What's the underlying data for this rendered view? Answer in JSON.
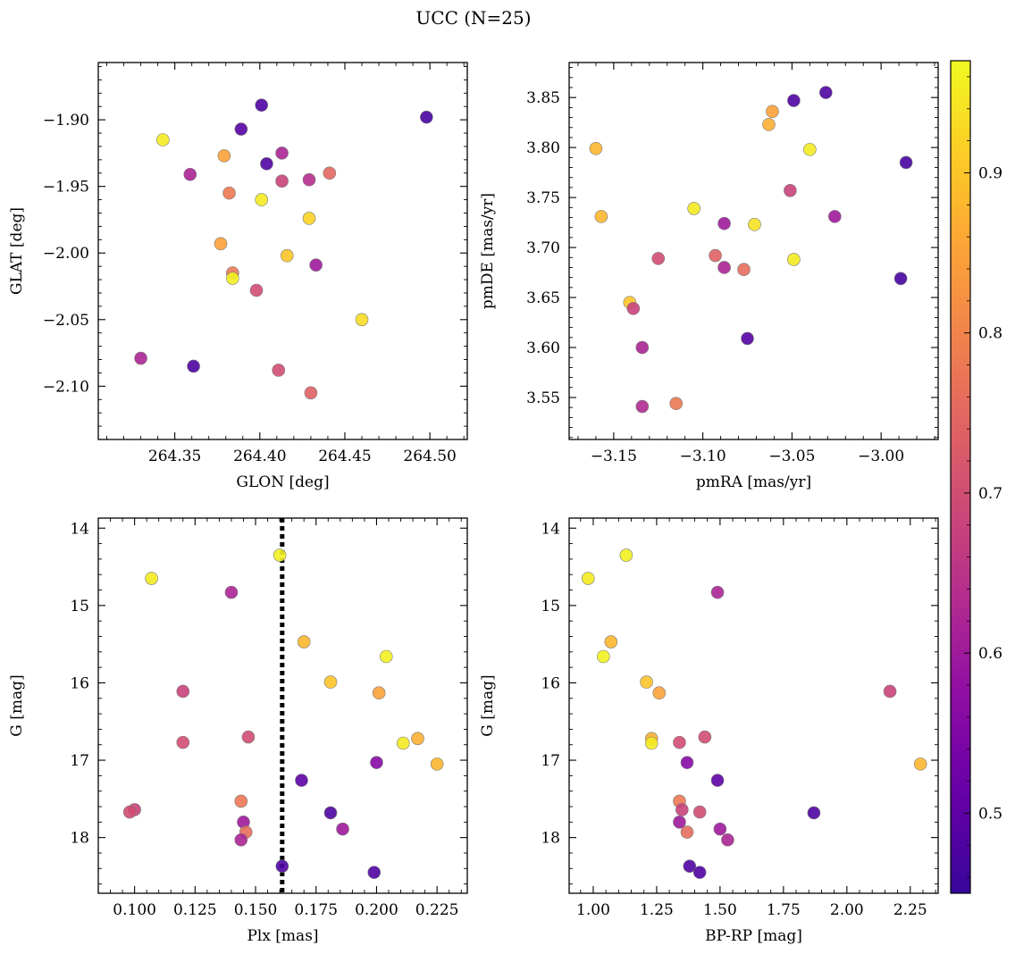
{
  "figure": {
    "title": "UCC (N=25)",
    "colorbar": {
      "colormap": "plasma",
      "range": [
        0.45,
        0.97
      ],
      "ticks": [
        0.5,
        0.6,
        0.7,
        0.8,
        0.9
      ],
      "tick_labels": [
        "0.5",
        "0.6",
        "0.7",
        "0.8",
        "0.9"
      ]
    }
  },
  "chart_data": [
    {
      "type": "scatter",
      "title": "",
      "xlabel": "GLON [deg]",
      "ylabel": "GLAT [deg]",
      "xlim": [
        264.305,
        264.522
      ],
      "ylim": [
        -2.14,
        -1.857
      ],
      "y_inverted": false,
      "xticks": [
        264.35,
        264.4,
        264.45,
        264.5
      ],
      "xtick_labels": [
        "264.35",
        "264.40",
        "264.45",
        "264.50"
      ],
      "yticks": [
        -2.1,
        -2.05,
        -2.0,
        -1.95,
        -1.9
      ],
      "ytick_labels": [
        "−2.10",
        "−2.05",
        "−2.00",
        "−1.95",
        "−1.90"
      ],
      "points": [
        {
          "x": 264.401,
          "y": -1.889,
          "c": 0.48
        },
        {
          "x": 264.498,
          "y": -1.898,
          "c": 0.47
        },
        {
          "x": 264.389,
          "y": -1.907,
          "c": 0.49
        },
        {
          "x": 264.343,
          "y": -1.915,
          "c": 0.95
        },
        {
          "x": 264.413,
          "y": -1.925,
          "c": 0.62
        },
        {
          "x": 264.379,
          "y": -1.927,
          "c": 0.85
        },
        {
          "x": 264.404,
          "y": -1.933,
          "c": 0.48
        },
        {
          "x": 264.441,
          "y": -1.94,
          "c": 0.75
        },
        {
          "x": 264.359,
          "y": -1.941,
          "c": 0.62
        },
        {
          "x": 264.429,
          "y": -1.945,
          "c": 0.64
        },
        {
          "x": 264.413,
          "y": -1.946,
          "c": 0.68
        },
        {
          "x": 264.382,
          "y": -1.955,
          "c": 0.78
        },
        {
          "x": 264.401,
          "y": -1.96,
          "c": 0.95
        },
        {
          "x": 264.429,
          "y": -1.974,
          "c": 0.92
        },
        {
          "x": 264.377,
          "y": -1.993,
          "c": 0.85
        },
        {
          "x": 264.416,
          "y": -2.002,
          "c": 0.9
        },
        {
          "x": 264.433,
          "y": -2.009,
          "c": 0.6
        },
        {
          "x": 264.384,
          "y": -2.015,
          "c": 0.78
        },
        {
          "x": 264.384,
          "y": -2.019,
          "c": 0.96
        },
        {
          "x": 264.398,
          "y": -2.028,
          "c": 0.7
        },
        {
          "x": 264.46,
          "y": -2.05,
          "c": 0.93
        },
        {
          "x": 264.33,
          "y": -2.079,
          "c": 0.62
        },
        {
          "x": 264.361,
          "y": -2.085,
          "c": 0.48
        },
        {
          "x": 264.411,
          "y": -2.088,
          "c": 0.7
        },
        {
          "x": 264.43,
          "y": -2.105,
          "c": 0.74
        }
      ]
    },
    {
      "type": "scatter",
      "title": "",
      "xlabel": "pmRA [mas/yr]",
      "ylabel": "pmDE [mas/yr]",
      "xlim": [
        -3.175,
        -2.968
      ],
      "ylim": [
        3.508,
        3.885
      ],
      "y_inverted": false,
      "xticks": [
        -3.15,
        -3.1,
        -3.05,
        -3.0
      ],
      "xtick_labels": [
        "−3.15",
        "−3.10",
        "−3.05",
        "−3.00"
      ],
      "yticks": [
        3.55,
        3.6,
        3.65,
        3.7,
        3.75,
        3.8,
        3.85
      ],
      "ytick_labels": [
        "3.55",
        "3.60",
        "3.65",
        "3.70",
        "3.75",
        "3.80",
        "3.85"
      ],
      "points": [
        {
          "x": -3.031,
          "y": 3.855,
          "c": 0.48
        },
        {
          "x": -3.049,
          "y": 3.847,
          "c": 0.48
        },
        {
          "x": -3.061,
          "y": 3.836,
          "c": 0.85
        },
        {
          "x": -3.063,
          "y": 3.823,
          "c": 0.87
        },
        {
          "x": -3.16,
          "y": 3.799,
          "c": 0.88
        },
        {
          "x": -3.04,
          "y": 3.798,
          "c": 0.95
        },
        {
          "x": -2.986,
          "y": 3.785,
          "c": 0.47
        },
        {
          "x": -3.051,
          "y": 3.757,
          "c": 0.68
        },
        {
          "x": -3.105,
          "y": 3.739,
          "c": 0.95
        },
        {
          "x": -3.026,
          "y": 3.731,
          "c": 0.6
        },
        {
          "x": -3.157,
          "y": 3.731,
          "c": 0.88
        },
        {
          "x": -3.088,
          "y": 3.724,
          "c": 0.6
        },
        {
          "x": -3.071,
          "y": 3.723,
          "c": 0.94
        },
        {
          "x": -3.093,
          "y": 3.692,
          "c": 0.74
        },
        {
          "x": -3.125,
          "y": 3.689,
          "c": 0.7
        },
        {
          "x": -3.049,
          "y": 3.688,
          "c": 0.95
        },
        {
          "x": -3.088,
          "y": 3.68,
          "c": 0.62
        },
        {
          "x": -3.077,
          "y": 3.678,
          "c": 0.76
        },
        {
          "x": -2.989,
          "y": 3.669,
          "c": 0.47
        },
        {
          "x": -3.141,
          "y": 3.645,
          "c": 0.9
        },
        {
          "x": -3.139,
          "y": 3.639,
          "c": 0.68
        },
        {
          "x": -3.075,
          "y": 3.609,
          "c": 0.49
        },
        {
          "x": -3.134,
          "y": 3.6,
          "c": 0.62
        },
        {
          "x": -3.115,
          "y": 3.544,
          "c": 0.78
        },
        {
          "x": -3.134,
          "y": 3.541,
          "c": 0.63
        }
      ]
    },
    {
      "type": "scatter",
      "title": "",
      "xlabel": "Plx [mas]",
      "ylabel": "G [mag]",
      "xlim": [
        0.085,
        0.2375
      ],
      "ylim": [
        18.72,
        13.87
      ],
      "y_inverted": true,
      "xticks": [
        0.1,
        0.125,
        0.15,
        0.175,
        0.2,
        0.225
      ],
      "xtick_labels": [
        "0.100",
        "0.125",
        "0.150",
        "0.175",
        "0.200",
        "0.225"
      ],
      "yticks": [
        14,
        15,
        16,
        17,
        18
      ],
      "ytick_labels": [
        "14",
        "15",
        "16",
        "17",
        "18"
      ],
      "vline": {
        "x": 0.161,
        "style": "dotted",
        "color": "#000000"
      },
      "points": [
        {
          "x": 0.16,
          "y": 14.35,
          "c": 0.96
        },
        {
          "x": 0.107,
          "y": 14.65,
          "c": 0.95
        },
        {
          "x": 0.14,
          "y": 14.83,
          "c": 0.62
        },
        {
          "x": 0.17,
          "y": 15.47,
          "c": 0.88
        },
        {
          "x": 0.204,
          "y": 15.66,
          "c": 0.96
        },
        {
          "x": 0.181,
          "y": 15.99,
          "c": 0.9
        },
        {
          "x": 0.12,
          "y": 16.11,
          "c": 0.68
        },
        {
          "x": 0.201,
          "y": 16.13,
          "c": 0.85
        },
        {
          "x": 0.147,
          "y": 16.7,
          "c": 0.7
        },
        {
          "x": 0.217,
          "y": 16.72,
          "c": 0.87
        },
        {
          "x": 0.12,
          "y": 16.77,
          "c": 0.7
        },
        {
          "x": 0.211,
          "y": 16.78,
          "c": 0.95
        },
        {
          "x": 0.2,
          "y": 17.03,
          "c": 0.56
        },
        {
          "x": 0.225,
          "y": 17.05,
          "c": 0.88
        },
        {
          "x": 0.169,
          "y": 17.26,
          "c": 0.5
        },
        {
          "x": 0.144,
          "y": 17.53,
          "c": 0.78
        },
        {
          "x": 0.1,
          "y": 17.64,
          "c": 0.68
        },
        {
          "x": 0.098,
          "y": 17.67,
          "c": 0.7
        },
        {
          "x": 0.181,
          "y": 17.68,
          "c": 0.48
        },
        {
          "x": 0.145,
          "y": 17.8,
          "c": 0.6
        },
        {
          "x": 0.186,
          "y": 17.89,
          "c": 0.6
        },
        {
          "x": 0.146,
          "y": 17.93,
          "c": 0.76
        },
        {
          "x": 0.144,
          "y": 18.03,
          "c": 0.62
        },
        {
          "x": 0.161,
          "y": 18.37,
          "c": 0.48
        },
        {
          "x": 0.199,
          "y": 18.45,
          "c": 0.48
        }
      ]
    },
    {
      "type": "scatter",
      "title": "",
      "xlabel": "BP-RP [mag]",
      "ylabel": "G [mag]",
      "xlim": [
        0.905,
        2.36
      ],
      "ylim": [
        18.72,
        13.87
      ],
      "y_inverted": true,
      "xticks": [
        1.0,
        1.25,
        1.5,
        1.75,
        2.0,
        2.25
      ],
      "xtick_labels": [
        "1.00",
        "1.25",
        "1.50",
        "1.75",
        "2.00",
        "2.25"
      ],
      "yticks": [
        14,
        15,
        16,
        17,
        18
      ],
      "ytick_labels": [
        "14",
        "15",
        "16",
        "17",
        "18"
      ],
      "points": [
        {
          "x": 1.13,
          "y": 14.35,
          "c": 0.96
        },
        {
          "x": 0.98,
          "y": 14.65,
          "c": 0.95
        },
        {
          "x": 1.49,
          "y": 14.83,
          "c": 0.62
        },
        {
          "x": 1.07,
          "y": 15.47,
          "c": 0.88
        },
        {
          "x": 1.04,
          "y": 15.66,
          "c": 0.96
        },
        {
          "x": 1.21,
          "y": 15.99,
          "c": 0.9
        },
        {
          "x": 2.17,
          "y": 16.11,
          "c": 0.68
        },
        {
          "x": 1.26,
          "y": 16.13,
          "c": 0.85
        },
        {
          "x": 1.44,
          "y": 16.7,
          "c": 0.7
        },
        {
          "x": 1.23,
          "y": 16.72,
          "c": 0.87
        },
        {
          "x": 1.34,
          "y": 16.77,
          "c": 0.7
        },
        {
          "x": 1.23,
          "y": 16.78,
          "c": 0.95
        },
        {
          "x": 1.37,
          "y": 17.03,
          "c": 0.56
        },
        {
          "x": 2.29,
          "y": 17.05,
          "c": 0.88
        },
        {
          "x": 1.49,
          "y": 17.26,
          "c": 0.5
        },
        {
          "x": 1.34,
          "y": 17.53,
          "c": 0.78
        },
        {
          "x": 1.35,
          "y": 17.64,
          "c": 0.68
        },
        {
          "x": 1.42,
          "y": 17.67,
          "c": 0.7
        },
        {
          "x": 1.87,
          "y": 17.68,
          "c": 0.48
        },
        {
          "x": 1.34,
          "y": 17.8,
          "c": 0.6
        },
        {
          "x": 1.5,
          "y": 17.89,
          "c": 0.6
        },
        {
          "x": 1.37,
          "y": 17.93,
          "c": 0.76
        },
        {
          "x": 1.53,
          "y": 18.03,
          "c": 0.62
        },
        {
          "x": 1.38,
          "y": 18.37,
          "c": 0.48
        },
        {
          "x": 1.42,
          "y": 18.45,
          "c": 0.48
        }
      ]
    }
  ]
}
